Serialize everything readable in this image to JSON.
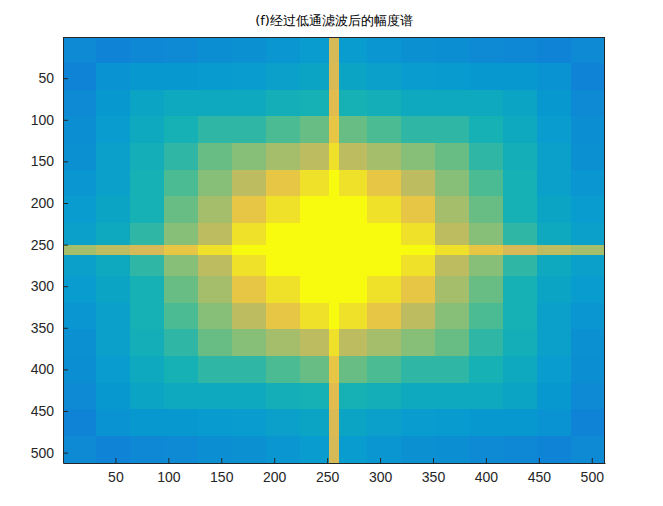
{
  "chart_data": {
    "type": "heatmap",
    "title": "(f)经过低通滤波后的幅度谱",
    "x_edges": [
      0.5,
      32,
      64,
      96,
      128,
      160,
      192,
      224,
      252,
      261,
      288,
      320,
      352,
      384,
      416,
      448,
      480,
      512.5
    ],
    "y_edges": [
      0.5,
      32,
      64,
      96,
      128,
      160,
      192,
      224,
      250,
      262,
      288,
      320,
      352,
      384,
      416,
      448,
      480,
      512.5
    ],
    "cells": [
      [
        3,
        2.8,
        2.9,
        3,
        3.2,
        3.3,
        3.5,
        3.8,
        8.5,
        3.8,
        3.5,
        3.3,
        3.2,
        3,
        2.9,
        2.8,
        3
      ],
      [
        2.8,
        3.4,
        3.6,
        3.6,
        3.7,
        3.8,
        4,
        4.2,
        8.6,
        4.2,
        4,
        3.8,
        3.7,
        3.6,
        3.6,
        3.4,
        2.8
      ],
      [
        3,
        3.6,
        4.2,
        4.5,
        4.5,
        4.5,
        4.8,
        5,
        8.8,
        5,
        4.8,
        4.5,
        4.5,
        4.5,
        4.2,
        3.6,
        3
      ],
      [
        3.2,
        3.8,
        4.5,
        5,
        5.5,
        5.5,
        6,
        6.5,
        9,
        6.5,
        6,
        5.5,
        5.5,
        5,
        4.5,
        3.8,
        3.2
      ],
      [
        3.3,
        4,
        4.8,
        5.5,
        6.5,
        7,
        7.5,
        8,
        9.5,
        8,
        7.5,
        7,
        6.5,
        5.5,
        4.8,
        4,
        3.3
      ],
      [
        3.5,
        4,
        5,
        6,
        7,
        8,
        9,
        9.5,
        10,
        9.5,
        9,
        8,
        7,
        6,
        5,
        4,
        3.5
      ],
      [
        3.8,
        4.2,
        5,
        6.5,
        7.5,
        9,
        9.5,
        10,
        10,
        10,
        9.5,
        9,
        7.5,
        6.5,
        5,
        4.2,
        3.8
      ],
      [
        4,
        4.5,
        5.5,
        7,
        8,
        9.5,
        10,
        10,
        10,
        10,
        10,
        9.5,
        8,
        7,
        5.5,
        4.5,
        4
      ],
      [
        7.5,
        8,
        8.5,
        9,
        9.5,
        10,
        10,
        10,
        10,
        10,
        10,
        10,
        9.5,
        9,
        8.5,
        8,
        7.5
      ],
      [
        4,
        4.5,
        5.5,
        7,
        8,
        9.5,
        10,
        10,
        10,
        10,
        10,
        9.5,
        8,
        7,
        5.5,
        4.5,
        4
      ],
      [
        3.8,
        4.2,
        5,
        6.5,
        7.5,
        9,
        9.5,
        10,
        10,
        10,
        9.5,
        9,
        7.5,
        6.5,
        5,
        4.2,
        3.8
      ],
      [
        3.5,
        4,
        5,
        6,
        7,
        8,
        9,
        9.5,
        10,
        9.5,
        9,
        8,
        7,
        6,
        5,
        4,
        3.5
      ],
      [
        3.3,
        4,
        4.8,
        5.5,
        6.5,
        7,
        7.5,
        8,
        9.5,
        8,
        7.5,
        7,
        6.5,
        5.5,
        4.8,
        4,
        3.3
      ],
      [
        3.2,
        3.8,
        4.5,
        5,
        5.5,
        5.5,
        6,
        6.5,
        9,
        6.5,
        6,
        5.5,
        5.5,
        5,
        4.5,
        3.8,
        3.2
      ],
      [
        3,
        3.6,
        4.2,
        4.5,
        4.5,
        4.5,
        4.8,
        5,
        8.8,
        5,
        4.8,
        4.5,
        4.5,
        4.5,
        4.2,
        3.6,
        3
      ],
      [
        2.8,
        3.4,
        3.6,
        3.6,
        3.7,
        3.8,
        4,
        4.2,
        8.6,
        4.2,
        4,
        3.8,
        3.7,
        3.6,
        3.6,
        3.4,
        2.8
      ],
      [
        3,
        2.8,
        2.9,
        3,
        3.2,
        3.3,
        3.5,
        3.8,
        8.5,
        3.8,
        3.5,
        3.3,
        3.2,
        3,
        2.9,
        2.8,
        3
      ]
    ],
    "color_range": [
      0,
      10
    ],
    "xlim": [
      0.5,
      512.5
    ],
    "ylim": [
      512.5,
      0.5
    ],
    "xticks": [
      50,
      100,
      150,
      200,
      250,
      300,
      350,
      400,
      450,
      500
    ],
    "yticks": [
      50,
      100,
      150,
      200,
      250,
      300,
      350,
      400,
      450,
      500
    ]
  }
}
